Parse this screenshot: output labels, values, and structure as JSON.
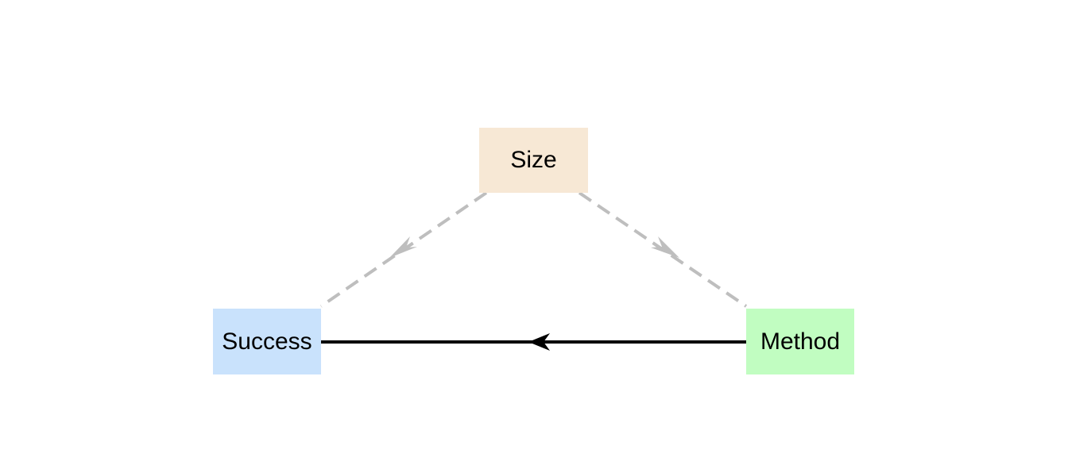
{
  "nodes": {
    "size": {
      "label": "Size",
      "color": "#F7E8D5"
    },
    "success": {
      "label": "Success",
      "color": "#C9E2FC"
    },
    "method": {
      "label": "Method",
      "color": "#C1FDC1"
    }
  },
  "edges": [
    {
      "from": "size",
      "to": "success",
      "style": "dashed",
      "color": "#BEBEBE"
    },
    {
      "from": "size",
      "to": "method",
      "style": "dashed",
      "color": "#BEBEBE"
    },
    {
      "from": "method",
      "to": "success",
      "style": "solid",
      "color": "#000000"
    }
  ]
}
